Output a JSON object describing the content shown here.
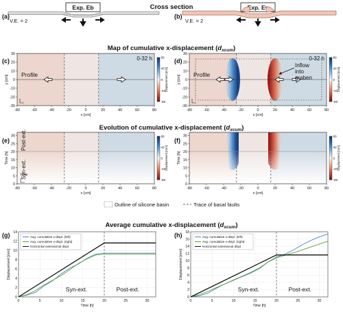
{
  "chart_data": [
    {
      "type": "diagram",
      "title": "Cross section",
      "panels": [
        {
          "letter": "(a)",
          "label": "Exp. Eb",
          "ve": "V.E. = 2"
        },
        {
          "letter": "(b)",
          "label": "Exp. Ev",
          "ve": "V.E. = 2"
        }
      ]
    },
    {
      "type": "heatmap",
      "title_main": "Map of cumulative x-displacement (",
      "title_var": "d",
      "title_sub": "xcum",
      "title_close": ")",
      "xlabel": "x [cm]",
      "ylabel": "y [cm]",
      "xticks": [
        "-80",
        "-60",
        "-40",
        "-20",
        "0",
        "20",
        "40",
        "60",
        "80"
      ],
      "yticks": [
        "30",
        "20",
        "10",
        "0",
        "-10",
        "-20",
        "-30"
      ],
      "xlim": [
        -80,
        80
      ],
      "ylim": [
        -30,
        30
      ],
      "colorbar": {
        "label": "Displacement [mm]",
        "ticks": [
          "80",
          "40",
          "0",
          "-40",
          "-80"
        ],
        "range": [
          -80,
          80
        ]
      },
      "panels": [
        {
          "letter": "(c)",
          "time_window": "0-32 h",
          "profile_label": "Profile"
        },
        {
          "letter": "(d)",
          "time_window": "0-32 h",
          "profile_label": "Profile",
          "annotation": [
            "Inflow",
            "into",
            "graben"
          ]
        }
      ]
    },
    {
      "type": "heatmap",
      "title_main": "Evolution of cumulative x-displacement (",
      "title_var": "d",
      "title_sub": "xcum",
      "title_close": ")",
      "xlabel": "x [cm]",
      "ylabel": "Time [h]",
      "xticks": [
        "-80",
        "-60",
        "-40",
        "-20",
        "0",
        "20",
        "40",
        "60",
        "80"
      ],
      "yticks": [
        "30",
        "25",
        "20",
        "15",
        "10",
        "5",
        "0"
      ],
      "xlim": [
        -80,
        80
      ],
      "ylim": [
        0,
        32
      ],
      "colorbar": {
        "label": "Displacement [mm]",
        "ticks": [
          "80",
          "40",
          "0",
          "-40",
          "-80"
        ],
        "range": [
          -80,
          80
        ]
      },
      "panels": [
        {
          "letter": "(e)",
          "phase_labels": [
            "Post-ext.",
            "Syn-ext."
          ],
          "axis_note": "time"
        },
        {
          "letter": "(f)"
        }
      ]
    },
    {
      "type": "legend",
      "items": [
        "Outline of silicone basin",
        "Trace of basal faults"
      ]
    },
    {
      "type": "line",
      "title_main": "Average cumulative x-displacement (",
      "title_var": "d",
      "title_sub": "xcum",
      "title_close": ")",
      "xlabel": "Time [h]",
      "ylabel": "Displacement [mm]",
      "xticks": [
        "0",
        "5",
        "10",
        "15",
        "20",
        "25",
        "30"
      ],
      "phase_labels": [
        "Syn-ext.",
        "Post-ext."
      ],
      "legend": [
        "Avg. cumulative x-displ. (left)",
        "Avg. cumulative x-displ. (right)",
        "Horizontal extensional displ."
      ],
      "colors": {
        "left": "#4a86c8",
        "right": "#5aa02c",
        "horizontal": "#111111"
      },
      "panels": [
        {
          "letter": "(g)",
          "xlim": [
            0,
            32
          ],
          "ylim": [
            0,
            14
          ],
          "yticks": [
            "0",
            "2",
            "4",
            "6",
            "8",
            "10",
            "12",
            "14"
          ],
          "series": [
            {
              "name": "Avg. cumulative x-displ. (left)",
              "x": [
                0,
                2,
                4,
                6,
                8,
                10,
                12,
                14,
                16,
                18,
                20,
                22,
                26,
                32
              ],
              "y": [
                0,
                0.4,
                1.0,
                2.4,
                3.5,
                5.0,
                6.2,
                7.1,
                8.3,
                9.2,
                9.4,
                9.4,
                9.4,
                9.4
              ]
            },
            {
              "name": "Avg. cumulative x-displ. (right)",
              "x": [
                0,
                2,
                4,
                6,
                8,
                10,
                12,
                14,
                16,
                18,
                20,
                22,
                26,
                32
              ],
              "y": [
                0,
                0.5,
                1.4,
                2.6,
                3.6,
                4.6,
                5.9,
                7.2,
                8.2,
                9.0,
                9.2,
                9.2,
                9.2,
                9.2
              ]
            },
            {
              "name": "Horizontal extensional displ.",
              "x": [
                0,
                20,
                32
              ],
              "y": [
                0,
                11.6,
                11.6
              ]
            }
          ]
        },
        {
          "letter": "(h)",
          "xlim": [
            0,
            32
          ],
          "ylim": [
            0,
            18
          ],
          "yticks": [
            "0",
            "2",
            "4",
            "6",
            "8",
            "10",
            "12",
            "14",
            "16",
            "18"
          ],
          "series": [
            {
              "name": "Avg. cumulative x-displ. (left)",
              "x": [
                0,
                2,
                4,
                6,
                8,
                10,
                12,
                14,
                16,
                18,
                20,
                22,
                24,
                26,
                28,
                30,
                32
              ],
              "y": [
                0,
                0.3,
                1.0,
                2.4,
                3.6,
                4.6,
                5.6,
                6.6,
                7.8,
                9.6,
                11.0,
                11.8,
                13.0,
                14.4,
                15.6,
                16.6,
                17.4
              ]
            },
            {
              "name": "Avg. cumulative x-displ. (right)",
              "x": [
                0,
                2,
                4,
                6,
                8,
                10,
                12,
                14,
                16,
                18,
                20,
                22,
                24,
                26,
                28,
                30,
                32
              ],
              "y": [
                0,
                0.6,
                1.5,
                2.6,
                3.6,
                4.7,
                5.7,
                6.8,
                8.0,
                9.6,
                10.8,
                11.5,
                12.2,
                13.0,
                13.8,
                14.6,
                15.4
              ]
            },
            {
              "name": "Horizontal extensional displ.",
              "x": [
                0,
                20,
                32
              ],
              "y": [
                0,
                11.6,
                11.6
              ]
            }
          ]
        }
      ]
    }
  ]
}
